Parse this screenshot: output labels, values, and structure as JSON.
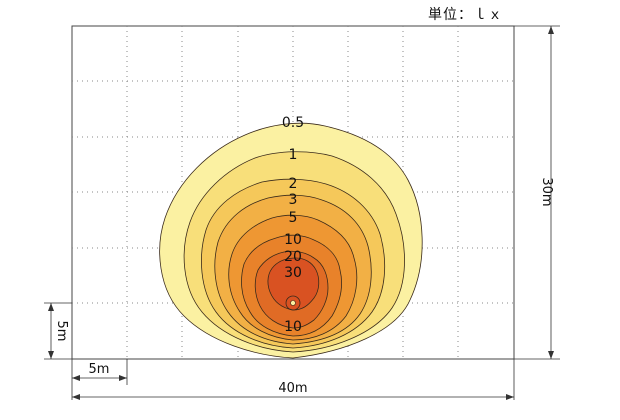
{
  "unit_label": "単位：ｌｘ",
  "contours": [
    {
      "label": "0.5",
      "color": "#fbf1a2"
    },
    {
      "label": "1",
      "color": "#f8df7a"
    },
    {
      "label": "2",
      "color": "#f5c85a"
    },
    {
      "label": "3",
      "color": "#f2b045"
    },
    {
      "label": "5",
      "color": "#ee9733"
    },
    {
      "label": "10",
      "color": "#e8822a"
    },
    {
      "label": "20",
      "color": "#e06b25"
    },
    {
      "label": "30",
      "color": "#d95222"
    }
  ],
  "bottom_contour_label": "10",
  "dimensions": {
    "width_total": "40m",
    "height_total": "30m",
    "grid_x": "5m",
    "grid_y": "5m"
  }
}
